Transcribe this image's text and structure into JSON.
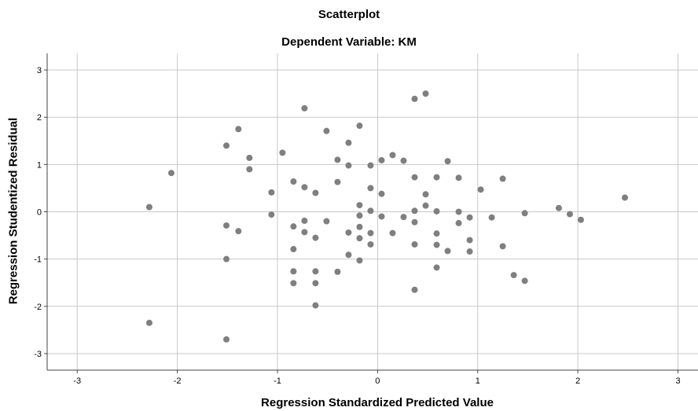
{
  "chart_data": {
    "type": "scatter",
    "title": "Scatterplot",
    "subtitle": "Dependent Variable: KM",
    "xlabel": "Regression Standardized Predicted Value",
    "ylabel": "Regression Studentized Residual",
    "xlim": [
      -3.3,
      3.2
    ],
    "ylim": [
      -3.35,
      3.35
    ],
    "xticks": [
      -3,
      -2,
      -1,
      0,
      1,
      2,
      3
    ],
    "yticks": [
      -3,
      -2,
      -1,
      0,
      1,
      2,
      3
    ],
    "grid": true,
    "marker_color": "#7f7f7f",
    "points": [
      {
        "x": -2.28,
        "y": 0.1
      },
      {
        "x": -2.28,
        "y": -2.35
      },
      {
        "x": -2.06,
        "y": 0.82
      },
      {
        "x": -1.51,
        "y": 1.4
      },
      {
        "x": -1.51,
        "y": -0.29
      },
      {
        "x": -1.51,
        "y": -1.0
      },
      {
        "x": -1.51,
        "y": -2.7
      },
      {
        "x": -1.39,
        "y": 1.75
      },
      {
        "x": -1.39,
        "y": -0.41
      },
      {
        "x": -1.28,
        "y": 1.14
      },
      {
        "x": -1.28,
        "y": 0.9
      },
      {
        "x": -1.06,
        "y": 0.41
      },
      {
        "x": -1.06,
        "y": -0.06
      },
      {
        "x": -0.95,
        "y": 1.25
      },
      {
        "x": -0.84,
        "y": 0.64
      },
      {
        "x": -0.84,
        "y": -0.31
      },
      {
        "x": -0.84,
        "y": -0.79
      },
      {
        "x": -0.84,
        "y": -1.26
      },
      {
        "x": -0.84,
        "y": -1.51
      },
      {
        "x": -0.73,
        "y": 2.19
      },
      {
        "x": -0.73,
        "y": 0.52
      },
      {
        "x": -0.73,
        "y": -0.19
      },
      {
        "x": -0.73,
        "y": -0.43
      },
      {
        "x": -0.62,
        "y": 0.4
      },
      {
        "x": -0.62,
        "y": -0.55
      },
      {
        "x": -0.62,
        "y": -1.26
      },
      {
        "x": -0.62,
        "y": -1.51
      },
      {
        "x": -0.62,
        "y": -1.98
      },
      {
        "x": -0.51,
        "y": 1.71
      },
      {
        "x": -0.51,
        "y": -0.2
      },
      {
        "x": -0.4,
        "y": 1.1
      },
      {
        "x": -0.4,
        "y": 0.63
      },
      {
        "x": -0.4,
        "y": -1.27
      },
      {
        "x": -0.29,
        "y": 1.46
      },
      {
        "x": -0.29,
        "y": 0.98
      },
      {
        "x": -0.29,
        "y": -0.44
      },
      {
        "x": -0.29,
        "y": -0.91
      },
      {
        "x": -0.18,
        "y": 1.82
      },
      {
        "x": -0.18,
        "y": 0.14
      },
      {
        "x": -0.18,
        "y": -0.08
      },
      {
        "x": -0.18,
        "y": -0.32
      },
      {
        "x": -0.18,
        "y": -0.56
      },
      {
        "x": -0.18,
        "y": -1.03
      },
      {
        "x": -0.07,
        "y": 0.98
      },
      {
        "x": -0.07,
        "y": 0.5
      },
      {
        "x": -0.07,
        "y": 0.02
      },
      {
        "x": -0.07,
        "y": -0.45
      },
      {
        "x": -0.07,
        "y": -0.69
      },
      {
        "x": 0.04,
        "y": 1.09
      },
      {
        "x": 0.04,
        "y": 0.38
      },
      {
        "x": 0.04,
        "y": -0.1
      },
      {
        "x": 0.15,
        "y": 1.2
      },
      {
        "x": 0.15,
        "y": -0.45
      },
      {
        "x": 0.26,
        "y": 1.08
      },
      {
        "x": 0.26,
        "y": -0.11
      },
      {
        "x": 0.37,
        "y": 2.39
      },
      {
        "x": 0.37,
        "y": 0.73
      },
      {
        "x": 0.37,
        "y": 0.02
      },
      {
        "x": 0.37,
        "y": -0.22
      },
      {
        "x": 0.37,
        "y": -0.69
      },
      {
        "x": 0.37,
        "y": -1.65
      },
      {
        "x": 0.48,
        "y": 2.5
      },
      {
        "x": 0.48,
        "y": 0.37
      },
      {
        "x": 0.48,
        "y": 0.13
      },
      {
        "x": 0.59,
        "y": 0.73
      },
      {
        "x": 0.59,
        "y": 0.01
      },
      {
        "x": 0.59,
        "y": -0.46
      },
      {
        "x": 0.59,
        "y": -0.7
      },
      {
        "x": 0.59,
        "y": -1.18
      },
      {
        "x": 0.7,
        "y": 1.07
      },
      {
        "x": 0.7,
        "y": -0.83
      },
      {
        "x": 0.81,
        "y": 0.72
      },
      {
        "x": 0.81,
        "y": 0.0
      },
      {
        "x": 0.81,
        "y": -0.24
      },
      {
        "x": 0.92,
        "y": -0.12
      },
      {
        "x": 0.92,
        "y": -0.6
      },
      {
        "x": 0.92,
        "y": -0.84
      },
      {
        "x": 1.03,
        "y": 0.47
      },
      {
        "x": 1.14,
        "y": -0.12
      },
      {
        "x": 1.25,
        "y": 0.7
      },
      {
        "x": 1.25,
        "y": -0.73
      },
      {
        "x": 1.36,
        "y": -1.34
      },
      {
        "x": 1.47,
        "y": -0.03
      },
      {
        "x": 1.47,
        "y": -1.46
      },
      {
        "x": 1.81,
        "y": 0.08
      },
      {
        "x": 1.92,
        "y": -0.05
      },
      {
        "x": 2.03,
        "y": -0.17
      },
      {
        "x": 2.47,
        "y": 0.3
      }
    ]
  }
}
